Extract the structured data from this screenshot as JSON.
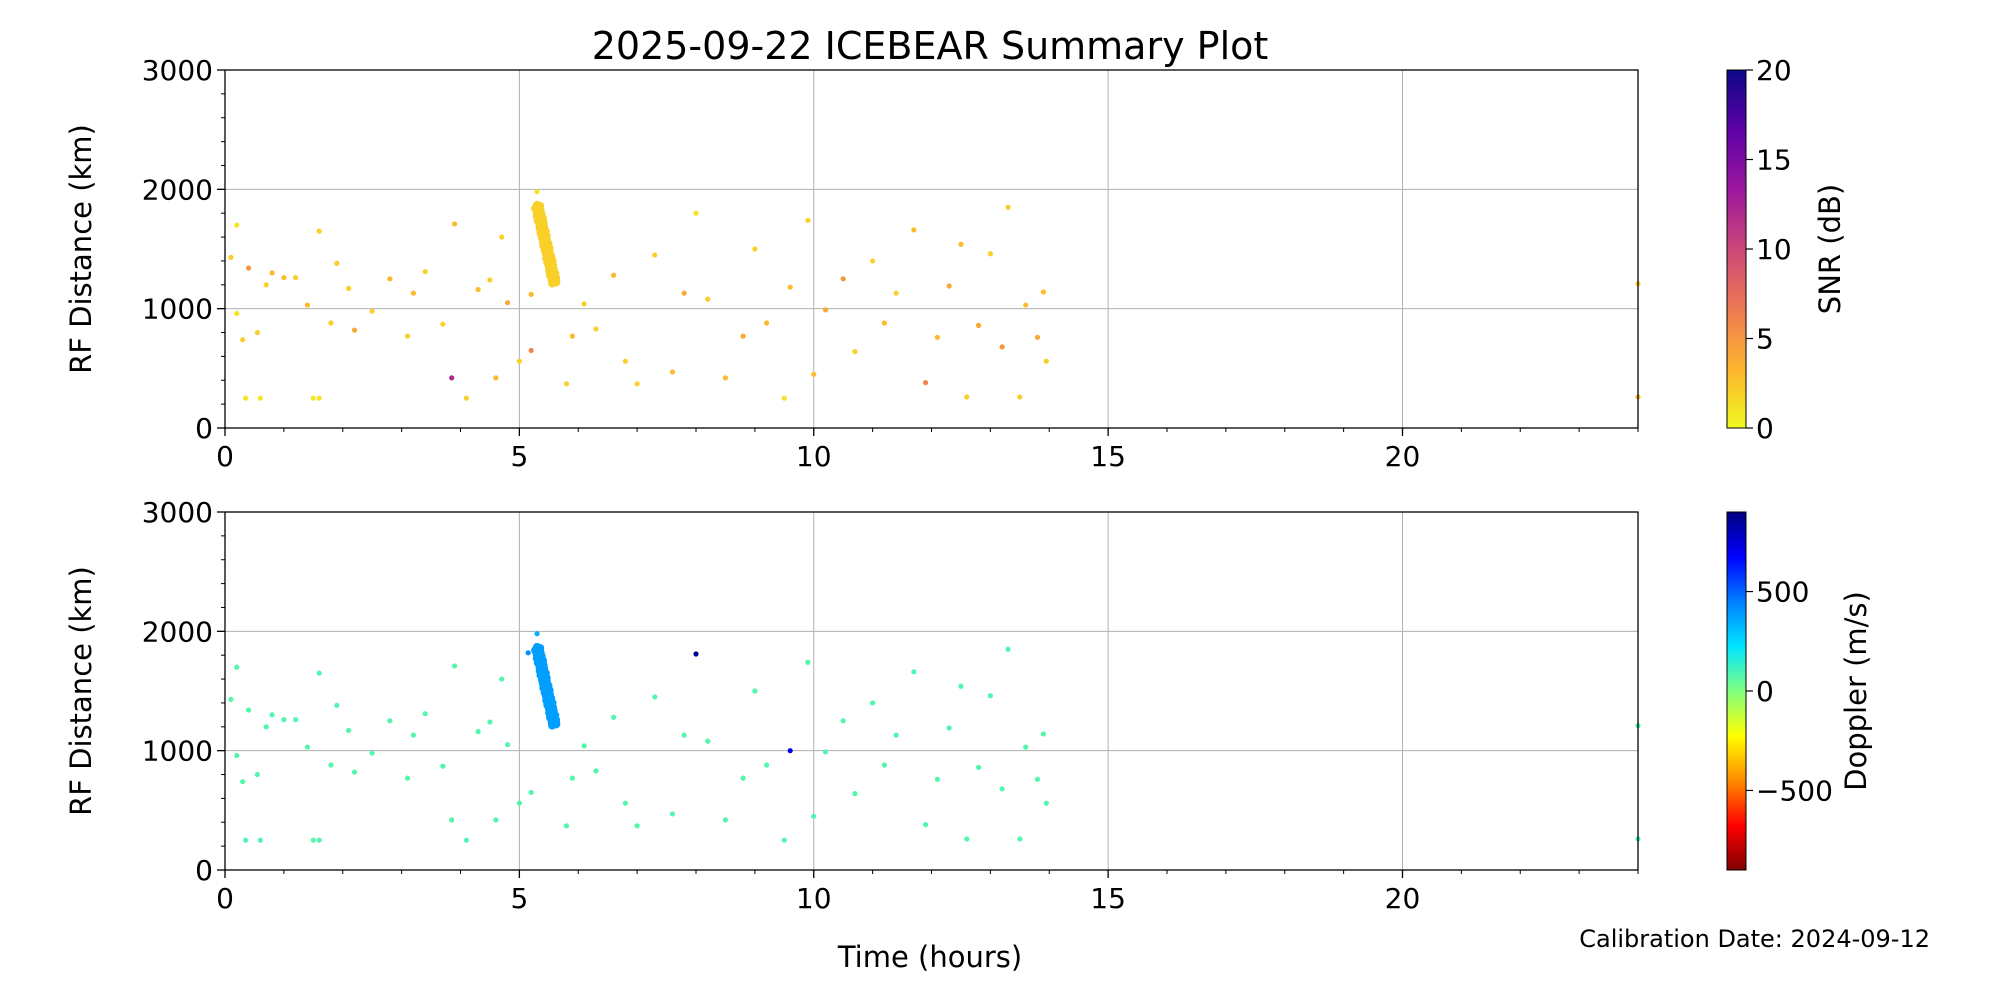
{
  "figure": {
    "title": "2025-09-22 ICEBEAR Summary Plot",
    "xlabel": "Time (hours)",
    "calibration_label": "Calibration Date: 2024-09-12"
  },
  "chart_data": [
    {
      "type": "scatter",
      "name": "snr-panel",
      "xlabel": "",
      "ylabel": "RF Distance (km)",
      "xlim": [
        0,
        24
      ],
      "ylim": [
        0,
        3000
      ],
      "x_ticks": [
        0,
        5,
        10,
        15,
        20
      ],
      "y_ticks": [
        0,
        1000,
        2000,
        3000
      ],
      "grid": true,
      "color_by": "SNR (dB)",
      "colorbar": {
        "label": "SNR (dB)",
        "range": [
          0,
          20
        ],
        "ticks": [
          0,
          5,
          10,
          15,
          20
        ],
        "colormap": "plasma_r",
        "stops": [
          "#f0f921",
          "#fdb42f",
          "#ed7953",
          "#cc4778",
          "#9c179e",
          "#5c01a6",
          "#0d0887"
        ]
      },
      "points": [
        {
          "x": 0.1,
          "y": 1430,
          "v": 2
        },
        {
          "x": 0.2,
          "y": 960,
          "v": 1
        },
        {
          "x": 0.2,
          "y": 1700,
          "v": 1
        },
        {
          "x": 0.3,
          "y": 740,
          "v": 2
        },
        {
          "x": 0.35,
          "y": 250,
          "v": 1
        },
        {
          "x": 0.4,
          "y": 1340,
          "v": 5
        },
        {
          "x": 0.6,
          "y": 250,
          "v": 1
        },
        {
          "x": 0.55,
          "y": 800,
          "v": 2
        },
        {
          "x": 0.7,
          "y": 1200,
          "v": 2
        },
        {
          "x": 0.8,
          "y": 1300,
          "v": 3
        },
        {
          "x": 1.0,
          "y": 1260,
          "v": 3
        },
        {
          "x": 1.2,
          "y": 1260,
          "v": 2
        },
        {
          "x": 1.4,
          "y": 1030,
          "v": 3
        },
        {
          "x": 1.5,
          "y": 250,
          "v": 1
        },
        {
          "x": 1.6,
          "y": 250,
          "v": 1
        },
        {
          "x": 1.6,
          "y": 1650,
          "v": 2
        },
        {
          "x": 1.8,
          "y": 880,
          "v": 2
        },
        {
          "x": 1.9,
          "y": 1380,
          "v": 2
        },
        {
          "x": 2.1,
          "y": 1170,
          "v": 2
        },
        {
          "x": 2.2,
          "y": 820,
          "v": 4
        },
        {
          "x": 2.5,
          "y": 980,
          "v": 2
        },
        {
          "x": 2.8,
          "y": 1250,
          "v": 3
        },
        {
          "x": 3.1,
          "y": 770,
          "v": 2
        },
        {
          "x": 3.2,
          "y": 1130,
          "v": 3
        },
        {
          "x": 3.4,
          "y": 1310,
          "v": 2
        },
        {
          "x": 3.7,
          "y": 870,
          "v": 2
        },
        {
          "x": 3.85,
          "y": 420,
          "v": 12
        },
        {
          "x": 3.9,
          "y": 1710,
          "v": 3
        },
        {
          "x": 4.1,
          "y": 250,
          "v": 2
        },
        {
          "x": 4.3,
          "y": 1160,
          "v": 3
        },
        {
          "x": 4.5,
          "y": 1240,
          "v": 2
        },
        {
          "x": 4.6,
          "y": 420,
          "v": 3
        },
        {
          "x": 4.7,
          "y": 1600,
          "v": 2
        },
        {
          "x": 4.8,
          "y": 1050,
          "v": 4
        },
        {
          "x": 5.0,
          "y": 560,
          "v": 2
        },
        {
          "x": 5.2,
          "y": 650,
          "v": 6
        },
        {
          "x": 5.2,
          "y": 1120,
          "v": 3
        },
        {
          "x": 5.3,
          "y": 1980,
          "v": 1
        },
        {
          "x": 5.8,
          "y": 370,
          "v": 2
        },
        {
          "x": 5.9,
          "y": 770,
          "v": 3
        },
        {
          "x": 6.1,
          "y": 1040,
          "v": 2
        },
        {
          "x": 6.3,
          "y": 830,
          "v": 2
        },
        {
          "x": 6.6,
          "y": 1280,
          "v": 3
        },
        {
          "x": 6.8,
          "y": 560,
          "v": 2
        },
        {
          "x": 7.0,
          "y": 370,
          "v": 2
        },
        {
          "x": 7.3,
          "y": 1450,
          "v": 2
        },
        {
          "x": 7.6,
          "y": 470,
          "v": 3
        },
        {
          "x": 7.8,
          "y": 1130,
          "v": 4
        },
        {
          "x": 8.0,
          "y": 1800,
          "v": 1
        },
        {
          "x": 8.2,
          "y": 1080,
          "v": 2
        },
        {
          "x": 8.5,
          "y": 420,
          "v": 3
        },
        {
          "x": 8.8,
          "y": 770,
          "v": 4
        },
        {
          "x": 9.0,
          "y": 1500,
          "v": 2
        },
        {
          "x": 9.2,
          "y": 880,
          "v": 3
        },
        {
          "x": 9.5,
          "y": 250,
          "v": 1
        },
        {
          "x": 9.6,
          "y": 1180,
          "v": 3
        },
        {
          "x": 9.9,
          "y": 1740,
          "v": 2
        },
        {
          "x": 10.0,
          "y": 450,
          "v": 3
        },
        {
          "x": 10.2,
          "y": 990,
          "v": 4
        },
        {
          "x": 10.5,
          "y": 1250,
          "v": 5
        },
        {
          "x": 10.7,
          "y": 640,
          "v": 2
        },
        {
          "x": 11.0,
          "y": 1400,
          "v": 2
        },
        {
          "x": 11.2,
          "y": 880,
          "v": 3
        },
        {
          "x": 11.4,
          "y": 1130,
          "v": 2
        },
        {
          "x": 11.7,
          "y": 1660,
          "v": 3
        },
        {
          "x": 11.9,
          "y": 380,
          "v": 6
        },
        {
          "x": 12.1,
          "y": 760,
          "v": 3
        },
        {
          "x": 12.3,
          "y": 1190,
          "v": 4
        },
        {
          "x": 12.5,
          "y": 1540,
          "v": 3
        },
        {
          "x": 12.6,
          "y": 260,
          "v": 2
        },
        {
          "x": 12.8,
          "y": 860,
          "v": 4
        },
        {
          "x": 13.0,
          "y": 1460,
          "v": 2
        },
        {
          "x": 13.2,
          "y": 680,
          "v": 5
        },
        {
          "x": 13.3,
          "y": 1850,
          "v": 2
        },
        {
          "x": 13.5,
          "y": 260,
          "v": 2
        },
        {
          "x": 13.6,
          "y": 1030,
          "v": 3
        },
        {
          "x": 13.8,
          "y": 760,
          "v": 4
        },
        {
          "x": 13.9,
          "y": 1140,
          "v": 3
        },
        {
          "x": 13.95,
          "y": 560,
          "v": 2
        },
        {
          "x": 24.0,
          "y": 1210,
          "v": 2
        },
        {
          "x": 24.0,
          "y": 260,
          "v": 3
        }
      ],
      "cluster": {
        "x_start": 5.3,
        "x_end": 5.6,
        "y_top": 1870,
        "y_bottom": 1210,
        "v": 2
      }
    },
    {
      "type": "scatter",
      "name": "doppler-panel",
      "xlabel": "Time (hours)",
      "ylabel": "RF Distance (km)",
      "xlim": [
        0,
        24
      ],
      "ylim": [
        0,
        3000
      ],
      "x_ticks": [
        0,
        5,
        10,
        15,
        20
      ],
      "y_ticks": [
        0,
        1000,
        2000,
        3000
      ],
      "grid": true,
      "color_by": "Doppler (m/s)",
      "colorbar": {
        "label": "Doppler (m/s)",
        "range": [
          -900,
          900
        ],
        "ticks": [
          -500,
          0,
          500
        ],
        "colormap": "jet_r",
        "stops": [
          "#800000",
          "#ff0000",
          "#ff8c00",
          "#ffff00",
          "#80ff80",
          "#00e5ff",
          "#0080ff",
          "#0000ff",
          "#000080"
        ]
      },
      "points": [
        {
          "x": 0.1,
          "y": 1430,
          "v": 80
        },
        {
          "x": 0.2,
          "y": 960,
          "v": 80
        },
        {
          "x": 0.2,
          "y": 1700,
          "v": 80
        },
        {
          "x": 0.3,
          "y": 740,
          "v": 80
        },
        {
          "x": 0.35,
          "y": 250,
          "v": 80
        },
        {
          "x": 0.4,
          "y": 1340,
          "v": 80
        },
        {
          "x": 0.6,
          "y": 250,
          "v": 80
        },
        {
          "x": 0.55,
          "y": 800,
          "v": 80
        },
        {
          "x": 0.7,
          "y": 1200,
          "v": 80
        },
        {
          "x": 0.8,
          "y": 1300,
          "v": 80
        },
        {
          "x": 1.0,
          "y": 1260,
          "v": 80
        },
        {
          "x": 1.2,
          "y": 1260,
          "v": 80
        },
        {
          "x": 1.4,
          "y": 1030,
          "v": 80
        },
        {
          "x": 1.5,
          "y": 250,
          "v": 80
        },
        {
          "x": 1.6,
          "y": 250,
          "v": 80
        },
        {
          "x": 1.6,
          "y": 1650,
          "v": 80
        },
        {
          "x": 1.8,
          "y": 880,
          "v": 80
        },
        {
          "x": 1.9,
          "y": 1380,
          "v": 80
        },
        {
          "x": 2.1,
          "y": 1170,
          "v": 80
        },
        {
          "x": 2.2,
          "y": 820,
          "v": 80
        },
        {
          "x": 2.5,
          "y": 980,
          "v": 80
        },
        {
          "x": 2.8,
          "y": 1250,
          "v": 80
        },
        {
          "x": 3.1,
          "y": 770,
          "v": 80
        },
        {
          "x": 3.2,
          "y": 1130,
          "v": 80
        },
        {
          "x": 3.4,
          "y": 1310,
          "v": 80
        },
        {
          "x": 3.7,
          "y": 870,
          "v": 80
        },
        {
          "x": 3.85,
          "y": 420,
          "v": 80
        },
        {
          "x": 3.9,
          "y": 1710,
          "v": 80
        },
        {
          "x": 4.1,
          "y": 250,
          "v": 80
        },
        {
          "x": 4.3,
          "y": 1160,
          "v": 80
        },
        {
          "x": 4.5,
          "y": 1240,
          "v": 80
        },
        {
          "x": 4.6,
          "y": 420,
          "v": 80
        },
        {
          "x": 4.7,
          "y": 1600,
          "v": 80
        },
        {
          "x": 4.8,
          "y": 1050,
          "v": 80
        },
        {
          "x": 5.0,
          "y": 560,
          "v": 80
        },
        {
          "x": 5.2,
          "y": 650,
          "v": 80
        },
        {
          "x": 5.15,
          "y": 1820,
          "v": 420
        },
        {
          "x": 5.3,
          "y": 1980,
          "v": 350
        },
        {
          "x": 5.8,
          "y": 370,
          "v": 80
        },
        {
          "x": 5.9,
          "y": 770,
          "v": 80
        },
        {
          "x": 6.1,
          "y": 1040,
          "v": 80
        },
        {
          "x": 6.3,
          "y": 830,
          "v": 80
        },
        {
          "x": 6.6,
          "y": 1280,
          "v": 80
        },
        {
          "x": 6.8,
          "y": 560,
          "v": 80
        },
        {
          "x": 7.0,
          "y": 370,
          "v": 80
        },
        {
          "x": 7.3,
          "y": 1450,
          "v": 80
        },
        {
          "x": 7.6,
          "y": 470,
          "v": 80
        },
        {
          "x": 7.8,
          "y": 1130,
          "v": 80
        },
        {
          "x": 8.0,
          "y": 1810,
          "v": 880
        },
        {
          "x": 8.2,
          "y": 1080,
          "v": 80
        },
        {
          "x": 8.5,
          "y": 420,
          "v": 80
        },
        {
          "x": 8.8,
          "y": 770,
          "v": 80
        },
        {
          "x": 9.0,
          "y": 1500,
          "v": 80
        },
        {
          "x": 9.2,
          "y": 880,
          "v": 80
        },
        {
          "x": 9.5,
          "y": 250,
          "v": 80
        },
        {
          "x": 9.6,
          "y": 1000,
          "v": 700
        },
        {
          "x": 9.9,
          "y": 1740,
          "v": 80
        },
        {
          "x": 10.0,
          "y": 450,
          "v": 80
        },
        {
          "x": 10.2,
          "y": 990,
          "v": 80
        },
        {
          "x": 10.5,
          "y": 1250,
          "v": 80
        },
        {
          "x": 10.7,
          "y": 640,
          "v": 80
        },
        {
          "x": 11.0,
          "y": 1400,
          "v": 80
        },
        {
          "x": 11.2,
          "y": 880,
          "v": 80
        },
        {
          "x": 11.4,
          "y": 1130,
          "v": 80
        },
        {
          "x": 11.7,
          "y": 1660,
          "v": 80
        },
        {
          "x": 11.9,
          "y": 380,
          "v": 80
        },
        {
          "x": 12.1,
          "y": 760,
          "v": 80
        },
        {
          "x": 12.3,
          "y": 1190,
          "v": 80
        },
        {
          "x": 12.5,
          "y": 1540,
          "v": 80
        },
        {
          "x": 12.6,
          "y": 260,
          "v": 80
        },
        {
          "x": 12.8,
          "y": 860,
          "v": 80
        },
        {
          "x": 13.0,
          "y": 1460,
          "v": 80
        },
        {
          "x": 13.2,
          "y": 680,
          "v": 80
        },
        {
          "x": 13.3,
          "y": 1850,
          "v": 80
        },
        {
          "x": 13.5,
          "y": 260,
          "v": 80
        },
        {
          "x": 13.6,
          "y": 1030,
          "v": 80
        },
        {
          "x": 13.8,
          "y": 760,
          "v": 80
        },
        {
          "x": 13.9,
          "y": 1140,
          "v": 80
        },
        {
          "x": 13.95,
          "y": 560,
          "v": 80
        },
        {
          "x": 24.0,
          "y": 1210,
          "v": 80
        },
        {
          "x": 24.0,
          "y": 260,
          "v": 80
        }
      ],
      "cluster": {
        "x_start": 5.3,
        "x_end": 5.6,
        "y_top": 1870,
        "y_bottom": 1210,
        "v": 380
      }
    }
  ]
}
